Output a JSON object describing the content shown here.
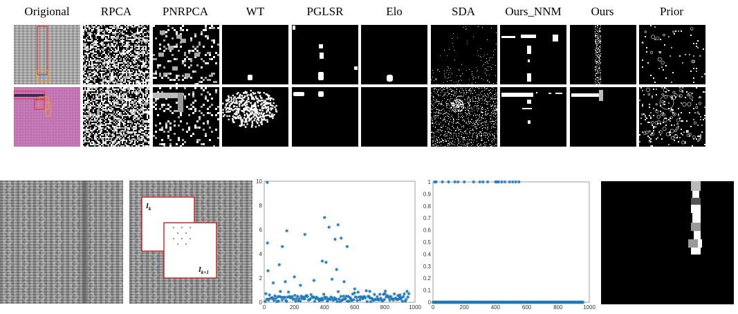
{
  "method_headers": [
    "Origional",
    "RPCA",
    "PNRPCA",
    "WT",
    "PGLSR",
    "Elo",
    "SDA",
    "Ours_NNM",
    "Ours",
    "Prior"
  ],
  "frame_labels": {
    "first": "I",
    "first_sub": "k",
    "second": "I",
    "second_sub": "k+1"
  },
  "colors": {
    "mask_bg": "#000000",
    "mask_fg": "#ffffff",
    "plot_marker": "#1f77b4",
    "box_red": "#e0322d",
    "box_orange": "#f0a030",
    "fabric_pink": "#c67ab9"
  },
  "chart_data": [
    {
      "type": "scatter",
      "marker": "asterisk",
      "xlim": [
        0,
        1000
      ],
      "ylim": [
        0,
        10
      ],
      "xticks": [
        0,
        200,
        400,
        600,
        800,
        1000
      ],
      "yticks": [
        0,
        2,
        4,
        6,
        8,
        10
      ],
      "outliers": [
        [
          20,
          9.9
        ],
        [
          22,
          4.9
        ],
        [
          25,
          2.6
        ],
        [
          60,
          1.6
        ],
        [
          100,
          3.1
        ],
        [
          120,
          4.6
        ],
        [
          150,
          5.9
        ],
        [
          140,
          1.7
        ],
        [
          200,
          2.1
        ],
        [
          240,
          1.4
        ],
        [
          270,
          5.6
        ],
        [
          330,
          1.8
        ],
        [
          385,
          3.4
        ],
        [
          400,
          7.0
        ],
        [
          410,
          3.3
        ],
        [
          430,
          6.2
        ],
        [
          450,
          1.9
        ],
        [
          470,
          5.2
        ],
        [
          480,
          2.7
        ],
        [
          490,
          6.4
        ],
        [
          510,
          5.3
        ],
        [
          530,
          1.7
        ],
        [
          550,
          4.6
        ],
        [
          600,
          1.1
        ],
        [
          700,
          0.9
        ],
        [
          800,
          0.7
        ],
        [
          900,
          0.6
        ]
      ]
    },
    {
      "type": "scatter",
      "marker": "asterisk",
      "xlim": [
        0,
        1000
      ],
      "ylim": [
        0,
        1
      ],
      "xticks": [
        0,
        200,
        400,
        600,
        800,
        1000
      ],
      "yticks": [
        0,
        0.1,
        0.2,
        0.3,
        0.4,
        0.5,
        0.6,
        0.7,
        0.8,
        0.9,
        1
      ],
      "ones_x": [
        10,
        20,
        60,
        100,
        140,
        160,
        200,
        260,
        300,
        320,
        350,
        400,
        410,
        420,
        440,
        460,
        490,
        510,
        530,
        550
      ],
      "zeros_range": [
        0,
        960
      ]
    }
  ]
}
